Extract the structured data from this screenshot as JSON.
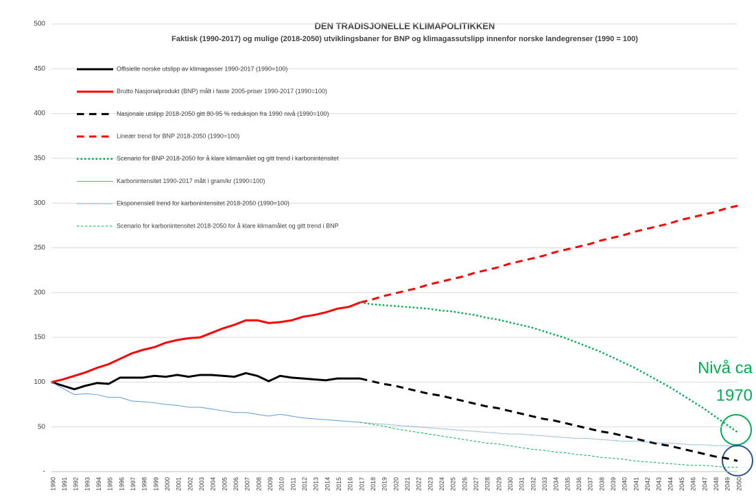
{
  "chart_data": {
    "type": "line",
    "title": "DEN TRADISJONELLE KLIMAPOLITIKKEN",
    "subtitle": "Faktisk (1990-2017) og mulige (2018-2050) utviklingsbaner for BNP og klimagassutslipp innenfor norske landegrenser (1990 = 100)",
    "annotation": [
      "Nivå ca",
      "1970"
    ],
    "annotation_color": "#00b050",
    "categories": [
      "1990",
      "1991",
      "1992",
      "1993",
      "1994",
      "1995",
      "1996",
      "1997",
      "1998",
      "1999",
      "2000",
      "2001",
      "2002",
      "2003",
      "2004",
      "2005",
      "2006",
      "2007",
      "2008",
      "2009",
      "2010",
      "2011",
      "2012",
      "2013",
      "2014",
      "2015",
      "2016",
      "2017",
      "2018",
      "2019",
      "2020",
      "2021",
      "2022",
      "2023",
      "2024",
      "2025",
      "2026",
      "2027",
      "2028",
      "2029",
      "2030",
      "2031",
      "2032",
      "2033",
      "2034",
      "2035",
      "2036",
      "2037",
      "2038",
      "2039",
      "2040",
      "2041",
      "2042",
      "2043",
      "2044",
      "2045",
      "2046",
      "2047",
      "2048",
      "2049",
      "2050"
    ],
    "ylim": [
      0,
      500
    ],
    "yticks": [
      {
        "value": 0,
        "label": "-"
      },
      50,
      100,
      150,
      200,
      250,
      300,
      350,
      400,
      450,
      500
    ],
    "grid": true,
    "legend": "upper left",
    "series": [
      {
        "name": "Offisielle norske utslipp av klimagasser 1990-2017 (1990=100)",
        "color": "#000000",
        "style": "solid",
        "width": 3,
        "values": [
          100,
          96,
          92,
          96,
          99,
          98,
          105,
          105,
          105,
          107,
          106,
          108,
          106,
          108,
          108,
          107,
          106,
          110,
          107,
          101,
          107,
          105,
          104,
          103,
          102,
          104,
          104,
          104,
          null,
          null,
          null,
          null,
          null,
          null,
          null,
          null,
          null,
          null,
          null,
          null,
          null,
          null,
          null,
          null,
          null,
          null,
          null,
          null,
          null,
          null,
          null,
          null,
          null,
          null,
          null,
          null,
          null,
          null,
          null,
          null,
          null
        ]
      },
      {
        "name": "Brutto Nasjonalprodukt (BNP) målt i faste 2005-priser 1990-2017 (1990=100)",
        "color": "#ff0000",
        "style": "solid",
        "width": 3,
        "values": [
          100,
          103,
          107,
          111,
          116,
          120,
          126,
          132,
          136,
          139,
          144,
          147,
          149,
          150,
          155,
          160,
          164,
          169,
          169,
          166,
          167,
          169,
          173,
          175,
          178,
          182,
          184,
          189,
          null,
          null,
          null,
          null,
          null,
          null,
          null,
          null,
          null,
          null,
          null,
          null,
          null,
          null,
          null,
          null,
          null,
          null,
          null,
          null,
          null,
          null,
          null,
          null,
          null,
          null,
          null,
          null,
          null,
          null,
          null,
          null,
          null
        ]
      },
      {
        "name": "Nasjonale utslipp 2018-2050 gitt 80-95 % reduksjon fra 1990 nivå (1990=100)",
        "color": "#000000",
        "style": "dashed",
        "width": 3,
        "values": [
          null,
          null,
          null,
          null,
          null,
          null,
          null,
          null,
          null,
          null,
          null,
          null,
          null,
          null,
          null,
          null,
          null,
          null,
          null,
          null,
          null,
          null,
          null,
          null,
          null,
          null,
          null,
          104,
          101,
          98,
          96,
          93,
          90,
          87,
          85,
          82,
          79,
          76,
          73,
          71,
          68,
          65,
          62,
          59,
          57,
          54,
          51,
          48,
          45,
          43,
          40,
          37,
          34,
          31,
          29,
          26,
          23,
          20,
          17,
          15,
          12
        ]
      },
      {
        "name": "Lineær trend for BNP 2018-2050 (1990=100)",
        "color": "#ff0000",
        "style": "dashed",
        "width": 3,
        "values": [
          null,
          null,
          null,
          null,
          null,
          null,
          null,
          null,
          null,
          null,
          null,
          null,
          null,
          null,
          null,
          null,
          null,
          null,
          null,
          null,
          null,
          null,
          null,
          null,
          null,
          null,
          null,
          189,
          192,
          196,
          199,
          202,
          205,
          209,
          212,
          215,
          218,
          222,
          225,
          228,
          232,
          235,
          238,
          241,
          245,
          248,
          251,
          254,
          258,
          261,
          264,
          268,
          271,
          274,
          277,
          281,
          284,
          287,
          290,
          294,
          297
        ]
      },
      {
        "name": "Scenario for BNP 2018-2050 for å klare klimamålet og gitt trend i karbonintensitet",
        "color": "#00b050",
        "style": "dotted",
        "width": 2.5,
        "values": [
          null,
          null,
          null,
          null,
          null,
          null,
          null,
          null,
          null,
          null,
          null,
          null,
          null,
          null,
          null,
          null,
          null,
          null,
          null,
          null,
          null,
          null,
          null,
          null,
          null,
          null,
          null,
          189,
          187,
          186,
          185,
          184,
          183,
          182,
          180,
          179,
          177,
          175,
          172,
          170,
          167,
          164,
          161,
          157,
          153,
          149,
          144,
          139,
          134,
          128,
          122,
          116,
          109,
          102,
          95,
          87,
          79,
          71,
          62,
          53,
          44
        ]
      },
      {
        "name": "Karbonintensitet 1990-2017 målt i gram/kr (1990=100)",
        "color": "#5b9bd5",
        "style": "solid",
        "width": 1,
        "values": [
          100,
          93,
          86,
          87,
          86,
          83,
          83,
          79,
          78,
          77,
          75,
          74,
          72,
          72,
          70,
          68,
          66,
          66,
          64,
          62,
          64,
          62,
          60,
          59,
          58,
          57,
          56,
          55,
          null,
          null,
          null,
          null,
          null,
          null,
          null,
          null,
          null,
          null,
          null,
          null,
          null,
          null,
          null,
          null,
          null,
          null,
          null,
          null,
          null,
          null,
          null,
          null,
          null,
          null,
          null,
          null,
          null,
          null,
          null,
          null,
          null
        ]
      },
      {
        "name": "Eksponensiell trend for karbonintensitet 2018-2050 (1990=100)",
        "color": "#2e75b6",
        "style": "dotted",
        "width": 1,
        "values": [
          null,
          null,
          null,
          null,
          null,
          null,
          null,
          null,
          null,
          null,
          null,
          null,
          null,
          null,
          null,
          null,
          null,
          null,
          null,
          null,
          null,
          null,
          null,
          null,
          null,
          null,
          null,
          55,
          54,
          53,
          52,
          51,
          50,
          49,
          48,
          47,
          46,
          45,
          44,
          43,
          42,
          42,
          41,
          40,
          39,
          38,
          37,
          37,
          36,
          35,
          34,
          34,
          33,
          32,
          32,
          31,
          30,
          30,
          29,
          29,
          28
        ]
      },
      {
        "name": "Scenario for karbonintensitet 2018-2050 for å klare klimamålet og gitt trend i BNP",
        "color": "#00b050",
        "style": "dashed",
        "width": 1,
        "values": [
          null,
          null,
          null,
          null,
          null,
          null,
          null,
          null,
          null,
          null,
          null,
          null,
          null,
          null,
          null,
          null,
          null,
          null,
          null,
          null,
          null,
          null,
          null,
          null,
          null,
          null,
          null,
          55,
          53,
          51,
          48,
          46,
          44,
          42,
          40,
          38,
          36,
          34,
          32,
          31,
          29,
          27,
          25,
          24,
          22,
          21,
          19,
          18,
          16,
          15,
          14,
          12,
          11,
          10,
          9,
          8,
          7,
          7,
          6,
          5,
          5
        ]
      }
    ]
  }
}
